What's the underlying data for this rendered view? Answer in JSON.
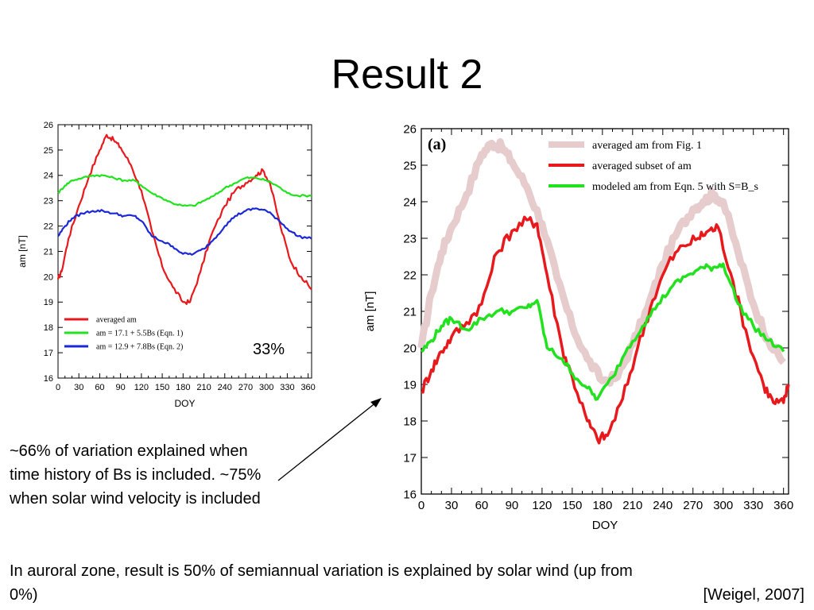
{
  "slide": {
    "title": "Result 2",
    "note_left": "~66% of variation explained when time history of Bs is included.  ~75% when solar wind velocity is included",
    "note_bottom": "In auroral zone, result is 50% of semiannual variation is explained by solar wind (up from 0%)",
    "citation": "[Weigel, 2007]",
    "percent_label": "33%"
  },
  "colors": {
    "red": "#e8191c",
    "green": "#22e11e",
    "blue": "#1a28d6",
    "pink": "#e6cccc",
    "arrow": "#000000"
  },
  "chart_data": [
    {
      "type": "line",
      "xlabel": "DOY",
      "ylabel": "am [nT]",
      "xlim": [
        0,
        365
      ],
      "ylim": [
        16,
        26
      ],
      "xticks": [
        0,
        30,
        60,
        90,
        120,
        150,
        180,
        210,
        240,
        270,
        300,
        330,
        360
      ],
      "yticks": [
        16,
        17,
        18,
        19,
        20,
        21,
        22,
        23,
        24,
        25,
        26
      ],
      "grid": false,
      "legend_position": "bottom-left",
      "series": [
        {
          "name": "averaged am",
          "color": "#e8191c",
          "x": [
            0,
            5,
            15,
            30,
            45,
            60,
            70,
            80,
            90,
            105,
            120,
            135,
            150,
            165,
            180,
            190,
            205,
            220,
            240,
            255,
            270,
            285,
            295,
            305,
            320,
            335,
            350,
            365
          ],
          "y": [
            19.9,
            20.2,
            21.5,
            22.8,
            24.0,
            25.0,
            25.6,
            25.4,
            25.1,
            24.4,
            23.4,
            21.8,
            20.4,
            19.6,
            19.0,
            19.0,
            20.2,
            21.6,
            22.8,
            23.4,
            23.7,
            24.0,
            24.2,
            23.7,
            22.0,
            20.6,
            20.0,
            19.5
          ]
        },
        {
          "name": "am = 17.1 + 5.5Bs (Eqn. 1)",
          "color": "#22e11e",
          "x": [
            0,
            10,
            20,
            35,
            50,
            65,
            80,
            95,
            110,
            120,
            135,
            150,
            165,
            180,
            195,
            210,
            225,
            240,
            255,
            270,
            285,
            300,
            315,
            330,
            345,
            365
          ],
          "y": [
            23.3,
            23.6,
            23.8,
            23.9,
            24.0,
            24.0,
            23.9,
            23.8,
            23.8,
            23.6,
            23.3,
            23.1,
            22.9,
            22.8,
            22.8,
            23.0,
            23.2,
            23.5,
            23.7,
            23.9,
            23.9,
            23.8,
            23.6,
            23.3,
            23.2,
            23.2
          ]
        },
        {
          "name": "am = 12.9 + 7.8Bs (Eqn. 2)",
          "color": "#1a28d6",
          "x": [
            0,
            10,
            20,
            35,
            50,
            65,
            80,
            95,
            110,
            120,
            135,
            150,
            165,
            180,
            195,
            210,
            225,
            240,
            255,
            270,
            285,
            300,
            315,
            330,
            345,
            365
          ],
          "y": [
            21.6,
            22.0,
            22.3,
            22.5,
            22.6,
            22.6,
            22.5,
            22.4,
            22.4,
            22.2,
            21.6,
            21.4,
            21.2,
            20.9,
            20.9,
            21.1,
            21.5,
            22.0,
            22.4,
            22.6,
            22.7,
            22.6,
            22.3,
            21.9,
            21.6,
            21.5
          ]
        }
      ]
    },
    {
      "type": "line",
      "xlabel": "DOY",
      "ylabel": "am [nT]",
      "panel_label": "(a)",
      "xlim": [
        0,
        365
      ],
      "ylim": [
        16,
        26
      ],
      "xticks": [
        0,
        30,
        60,
        90,
        120,
        150,
        180,
        210,
        240,
        270,
        300,
        330,
        360
      ],
      "yticks": [
        16,
        17,
        18,
        19,
        20,
        21,
        22,
        23,
        24,
        25,
        26
      ],
      "grid": false,
      "legend_position": "top-right",
      "series": [
        {
          "name": "averaged am from Fig. 1",
          "color": "#e6cccc",
          "x": [
            0,
            10,
            20,
            30,
            45,
            60,
            70,
            80,
            90,
            105,
            120,
            135,
            150,
            165,
            180,
            195,
            210,
            225,
            240,
            255,
            270,
            280,
            290,
            300,
            315,
            330,
            345,
            360
          ],
          "y": [
            20.0,
            21.5,
            22.6,
            23.3,
            24.2,
            25.3,
            25.6,
            25.5,
            25.1,
            24.4,
            23.4,
            21.9,
            20.6,
            19.7,
            19.1,
            19.2,
            20.1,
            21.1,
            22.3,
            23.2,
            23.8,
            24.0,
            24.2,
            24.0,
            22.6,
            21.2,
            20.2,
            19.6
          ]
        },
        {
          "name": "averaged subset of am",
          "color": "#e8191c",
          "x": [
            0,
            10,
            20,
            30,
            45,
            60,
            75,
            90,
            105,
            115,
            125,
            140,
            150,
            165,
            175,
            185,
            200,
            215,
            230,
            245,
            260,
            275,
            285,
            295,
            310,
            325,
            340,
            350,
            360,
            365
          ],
          "y": [
            18.8,
            19.4,
            19.9,
            20.3,
            20.7,
            21.2,
            22.6,
            23.2,
            23.5,
            23.4,
            22.0,
            20.0,
            19.2,
            18.0,
            17.5,
            17.6,
            18.6,
            20.0,
            21.3,
            22.3,
            22.8,
            23.0,
            23.2,
            23.3,
            21.8,
            20.2,
            19.0,
            18.5,
            18.5,
            19.0
          ]
        },
        {
          "name": "modeled am from Eqn. 5 with S=B_s",
          "color": "#22e11e",
          "x": [
            0,
            10,
            20,
            30,
            45,
            60,
            75,
            90,
            105,
            115,
            125,
            140,
            150,
            165,
            175,
            190,
            205,
            220,
            235,
            250,
            265,
            280,
            290,
            300,
            315,
            330,
            345,
            360
          ],
          "y": [
            19.9,
            20.2,
            20.6,
            20.8,
            20.5,
            20.8,
            21.0,
            21.0,
            21.1,
            21.3,
            20.0,
            19.7,
            19.3,
            18.9,
            18.6,
            19.2,
            20.0,
            20.6,
            21.2,
            21.7,
            22.0,
            22.2,
            22.2,
            22.3,
            21.2,
            20.6,
            20.2,
            19.9
          ]
        }
      ]
    }
  ]
}
